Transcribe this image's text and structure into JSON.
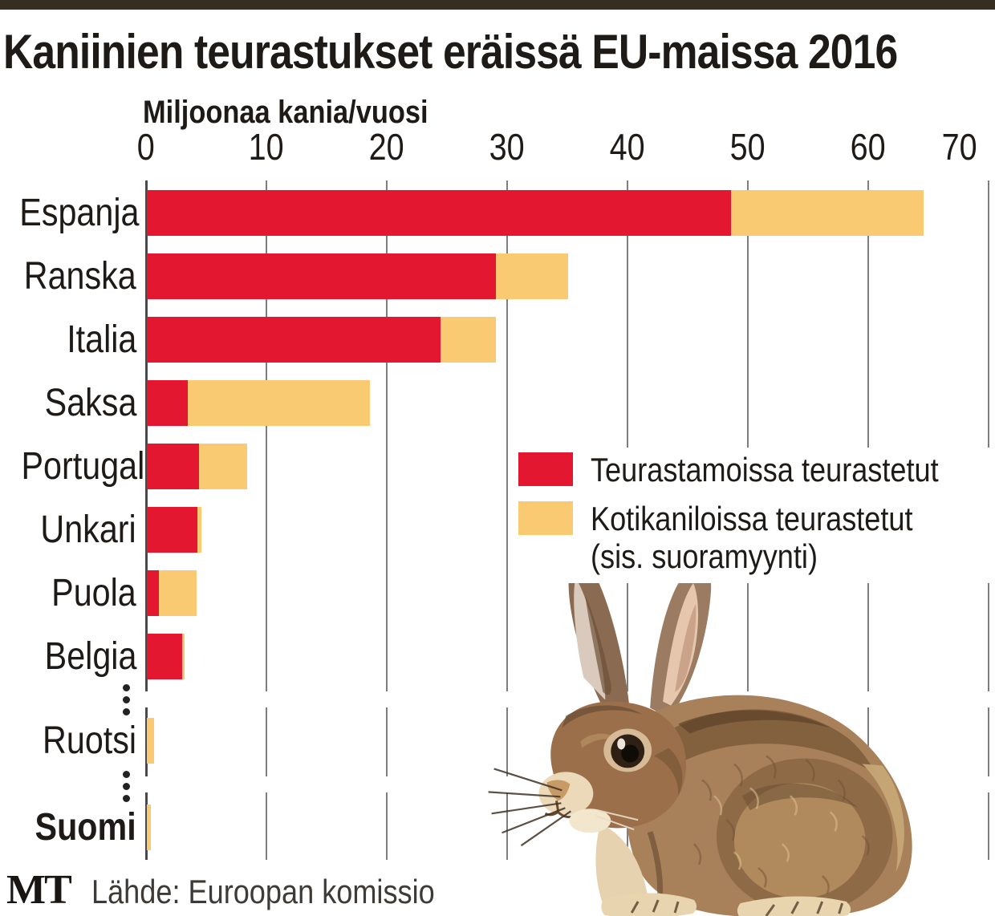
{
  "header": {
    "title": "Kaniinien teurastukset eräissä EU-maissa 2016"
  },
  "colors": {
    "slaughterhouse_red": "#E3172F",
    "home_yellow": "#F9CA72",
    "top_strip_brown": "#362E20",
    "gridline_gray": "#7E7E7E",
    "axis_gray": "#4A4A4A",
    "text_black": "#1D1A17"
  },
  "chart_data": {
    "type": "bar",
    "orientation": "horizontal",
    "stacked": true,
    "title": "Kaniinien teurastukset eräissä EU-maissa 2016",
    "xlabel": "Miljoonaa kania/vuosi",
    "unit": "miljoonaa kania/vuosi",
    "xlim": [
      0,
      70
    ],
    "x_ticks": [
      0,
      10,
      20,
      30,
      40,
      50,
      60,
      70
    ],
    "grid": true,
    "legend_position": "center-right",
    "categories": [
      "Espanja",
      "Ranska",
      "Italia",
      "Saksa",
      "Portugali",
      "Unkari",
      "Puola",
      "Belgia",
      "Ruotsi",
      "Suomi"
    ],
    "bold_categories": [
      "Suomi"
    ],
    "axis_breaks_after": [
      "Belgia",
      "Ruotsi"
    ],
    "series": [
      {
        "name": "Teurastamoissa teurastetut",
        "color": "#E3172F",
        "values": [
          48.5,
          29.0,
          24.4,
          3.4,
          4.3,
          4.2,
          1.0,
          2.9,
          0,
          0
        ]
      },
      {
        "name": "Kotikaniloissa teurastetut (sis. suoramyynti)",
        "color": "#F9CA72",
        "values": [
          16.0,
          6.0,
          4.6,
          15.1,
          4.0,
          0.3,
          3.1,
          0.2,
          0.6,
          0.3
        ]
      }
    ],
    "totals": [
      64.5,
      35.0,
      29.0,
      18.5,
      8.3,
      4.5,
      4.1,
      3.1,
      0.6,
      0.3
    ]
  },
  "legend": {
    "items": [
      {
        "label": "Teurastamoissa teurastetut",
        "sublabel": "",
        "color": "#E3172F"
      },
      {
        "label": "Kotikaniloissa teurastetut",
        "sublabel": "(sis. suoramyynti)",
        "color": "#F9CA72"
      }
    ]
  },
  "footer": {
    "logo": "MT",
    "source": "Lähde: Euroopan komissio"
  }
}
